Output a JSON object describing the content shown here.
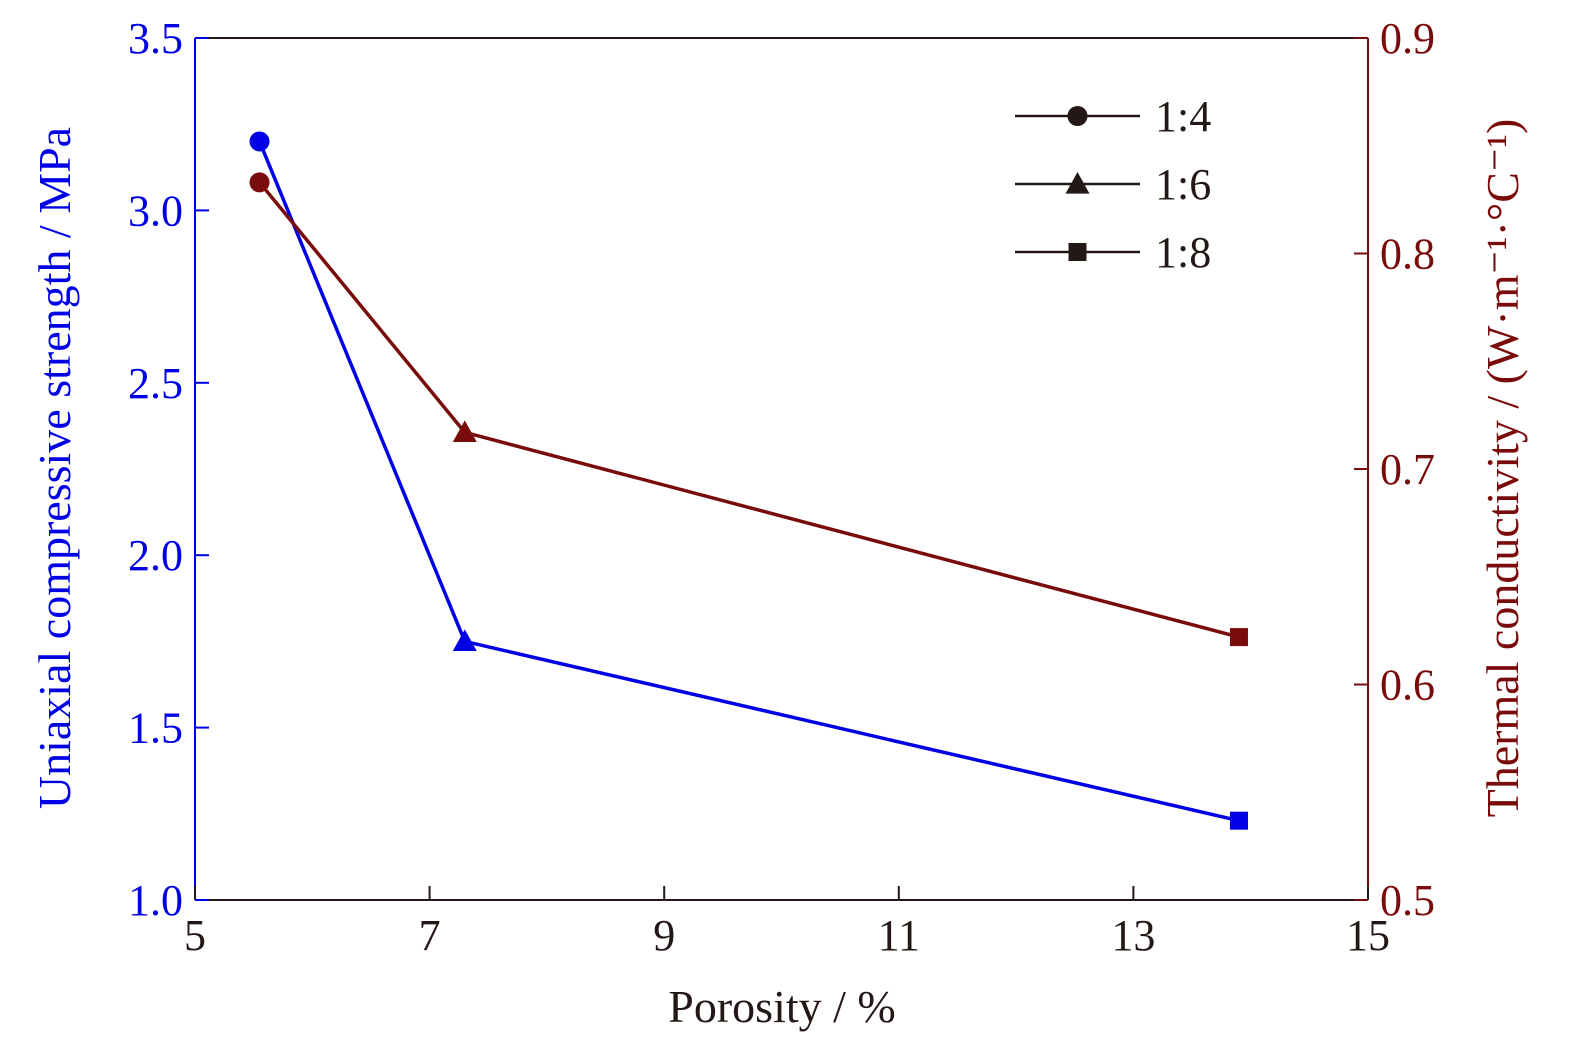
{
  "chart_data": {
    "type": "line",
    "xlabel": "Porosity / %",
    "x_ticks": [
      "5",
      "7",
      "9",
      "11",
      "13",
      "15"
    ],
    "xlim": [
      5,
      15
    ],
    "y_left": {
      "label": "Uniaxial compressive strength / MPa",
      "ticks": [
        "1.0",
        "1.5",
        "2.0",
        "2.5",
        "3.0",
        "3.5"
      ],
      "ylim": [
        1.0,
        3.5
      ],
      "color": "#0000e6"
    },
    "y_right": {
      "label": "Thermal conductivity / (W·m⁻¹·°C⁻¹)",
      "ticks": [
        "0.5",
        "0.6",
        "0.7",
        "0.8",
        "0.9"
      ],
      "ylim": [
        0.5,
        0.9
      ],
      "color": "#7a0b0b"
    },
    "series": [
      {
        "axis": "left",
        "color": "#0000e6",
        "x": [
          5.55,
          7.3,
          13.9
        ],
        "y": [
          3.2,
          1.75,
          1.23
        ],
        "markers": [
          "circle",
          "triangle",
          "square"
        ]
      },
      {
        "axis": "right",
        "color": "#7a0b0b",
        "x": [
          5.55,
          7.3,
          13.9
        ],
        "y": [
          0.833,
          0.717,
          0.622
        ],
        "markers": [
          "circle",
          "triangle",
          "square"
        ]
      }
    ],
    "legend": {
      "position": "top-right",
      "color": "#231815",
      "entries": [
        {
          "label": "1:4",
          "marker": "circle"
        },
        {
          "label": "1:6",
          "marker": "triangle"
        },
        {
          "label": "1:8",
          "marker": "square"
        }
      ]
    },
    "grid": false
  }
}
